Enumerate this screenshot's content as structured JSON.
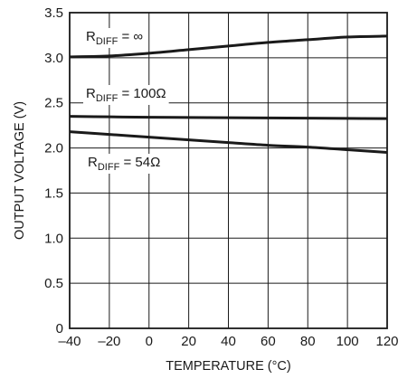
{
  "chart_data": {
    "type": "line",
    "xlabel": "TEMPERATURE (°C)",
    "ylabel": "OUTPUT VOLTAGE (V)",
    "xlim": [
      -40,
      120
    ],
    "ylim": [
      0,
      3.5
    ],
    "x_ticks": [
      "–40",
      "–20",
      "0",
      "20",
      "40",
      "60",
      "80",
      "100",
      "120"
    ],
    "y_ticks": [
      "0",
      "0.5",
      "1.0",
      "1.5",
      "2.0",
      "2.5",
      "3.0",
      "3.5"
    ],
    "grid": true,
    "colors": {
      "line": "#1a1a1a",
      "grid": "#1a1a1a",
      "background": "#ffffff"
    },
    "series": [
      {
        "label_prefix": "R",
        "label_sub": "DIFF",
        "label_suffix": " = ∞",
        "x": [
          -40,
          -20,
          0,
          20,
          40,
          60,
          80,
          100,
          120
        ],
        "values": [
          3.01,
          3.02,
          3.05,
          3.09,
          3.13,
          3.17,
          3.2,
          3.23,
          3.24
        ]
      },
      {
        "label_prefix": "R",
        "label_sub": "DIFF",
        "label_suffix": " = 100Ω",
        "x": [
          -40,
          -20,
          0,
          20,
          40,
          60,
          80,
          100,
          120
        ],
        "values": [
          2.35,
          2.345,
          2.34,
          2.338,
          2.335,
          2.333,
          2.33,
          2.328,
          2.325
        ]
      },
      {
        "label_prefix": "R",
        "label_sub": "DIFF",
        "label_suffix": " = 54Ω",
        "x": [
          -40,
          -20,
          0,
          20,
          40,
          60,
          80,
          100,
          120
        ],
        "values": [
          2.18,
          2.15,
          2.12,
          2.09,
          2.06,
          2.03,
          2.01,
          1.98,
          1.95
        ]
      }
    ]
  }
}
